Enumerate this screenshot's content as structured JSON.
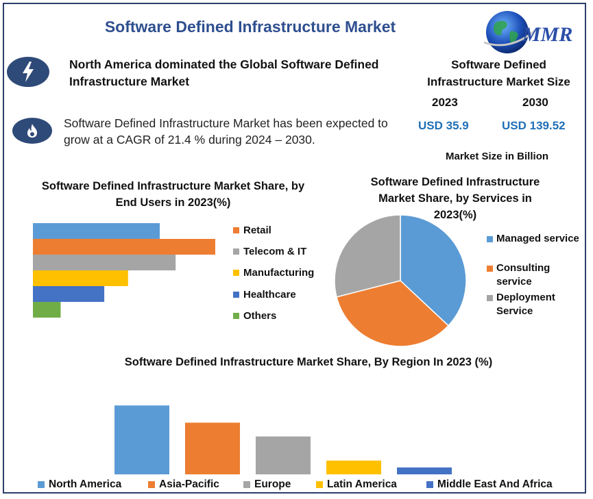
{
  "header": {
    "title": "Software Defined Infrastructure Market",
    "logo_text": "MMR"
  },
  "highlights": {
    "headline": "North America dominated the Global Software Defined Infrastructure Market",
    "description": "Software Defined Infrastructure Market has been expected to grow at a CAGR of 21.4 % during 2024 – 2030.",
    "headline_icon": "lightning-icon",
    "description_icon": "flame-icon"
  },
  "market_size": {
    "title": "Software Defined Infrastructure Market Size",
    "year_a": "2023",
    "year_b": "2030",
    "value_a": "USD 35.9",
    "value_b": "USD 139.52",
    "unit": "Market Size in Billion"
  },
  "colors": {
    "blue": "#5b9bd5",
    "orange": "#ed7d31",
    "gray": "#a5a5a5",
    "yellow": "#ffc000",
    "darkblue": "#4472c4",
    "green": "#70ad47",
    "title_blue": "#2e4f8f",
    "value_blue": "#1f6fb5"
  },
  "chart_data": [
    {
      "id": "end_users",
      "type": "bar",
      "orientation": "horizontal",
      "title": "Software Defined Infrastructure Market Share, by End Users in 2023(%)",
      "categories": [
        "",
        "Retail",
        "Telecom & IT",
        "Manufacturing",
        "Healthcare",
        "Others"
      ],
      "values": [
        32,
        46,
        36,
        24,
        18,
        7
      ],
      "colors": [
        "#5b9bd5",
        "#ed7d31",
        "#a5a5a5",
        "#ffc000",
        "#4472c4",
        "#70ad47"
      ],
      "xlim": [
        0,
        50
      ],
      "grid": false,
      "legend": "right",
      "legend_entries": [
        {
          "label": "Retail",
          "color": "#ed7d31"
        },
        {
          "label": "Telecom & IT",
          "color": "#a5a5a5"
        },
        {
          "label": "Manufacturing",
          "color": "#ffc000"
        },
        {
          "label": "Healthcare",
          "color": "#4472c4"
        },
        {
          "label": "Others",
          "color": "#70ad47"
        }
      ]
    },
    {
      "id": "services",
      "type": "pie",
      "title": "Software Defined Infrastructure Market Share, by Services  in 2023(%)",
      "labels": [
        "Managed service",
        "Consulting service",
        "Deployment Service"
      ],
      "values": [
        37,
        34,
        29
      ],
      "colors": [
        "#5b9bd5",
        "#ed7d31",
        "#a5a5a5"
      ],
      "legend": "right"
    },
    {
      "id": "region",
      "type": "bar",
      "orientation": "vertical",
      "title": "Software Defined Infrastructure Market Share, By Region In 2023 (%)",
      "categories": [
        "North America",
        "Asia-Pacific",
        "Europe",
        "Latin America",
        "Middle East And Africa"
      ],
      "values": [
        40,
        30,
        22,
        8,
        4
      ],
      "colors": [
        "#5b9bd5",
        "#ed7d31",
        "#a5a5a5",
        "#ffc000",
        "#4472c4"
      ],
      "ylim": [
        0,
        50
      ],
      "grid": false,
      "legend": "bottom"
    }
  ]
}
